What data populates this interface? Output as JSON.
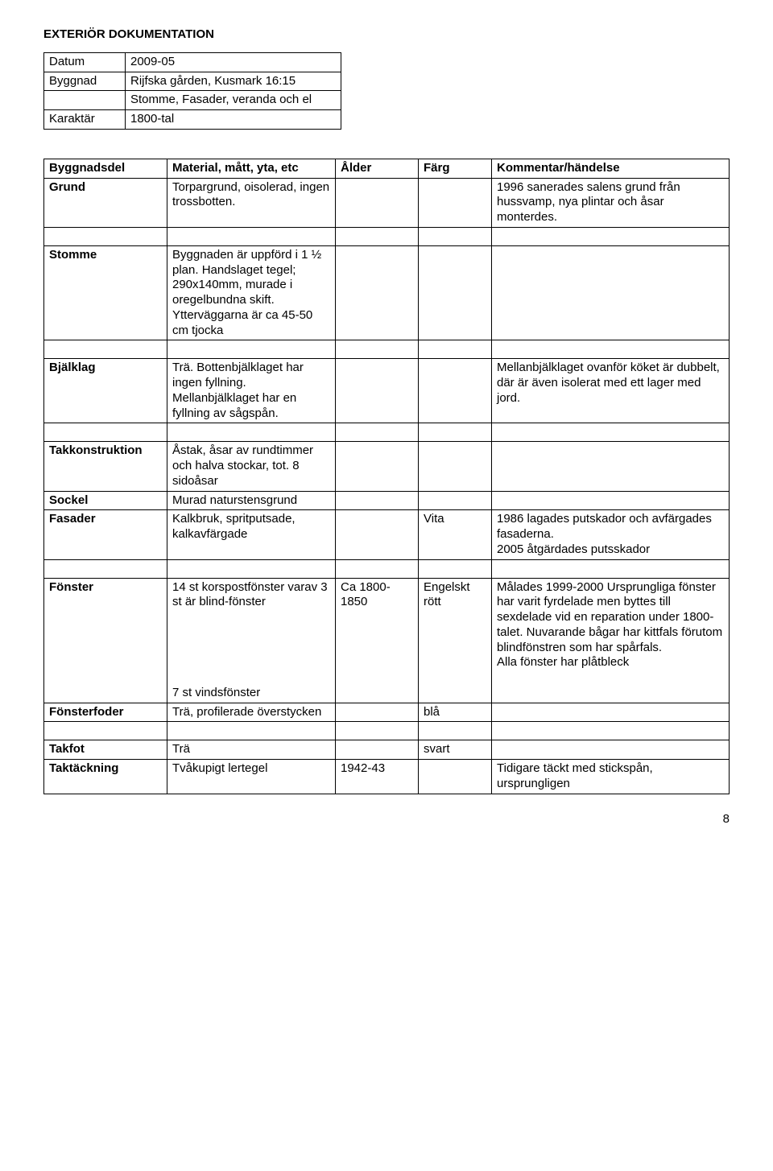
{
  "title": "EXTERIÖR DOKUMENTATION",
  "info": {
    "rows": [
      {
        "label": "Datum",
        "value": "2009-05"
      },
      {
        "label": "Byggnad",
        "value": "Rijfska gården, Kusmark 16:15"
      },
      {
        "label": "",
        "value": "Stomme, Fasader, veranda och el"
      },
      {
        "label": "Karaktär",
        "value": "1800-tal"
      }
    ]
  },
  "main": {
    "headers": {
      "part": "Byggnadsdel",
      "material": "Material, mått, yta, etc",
      "age": "Ålder",
      "color": "Färg",
      "comment": "Kommentar/händelse"
    },
    "rows": [
      {
        "part": "Grund",
        "material": "Torpargrund, oisolerad, ingen trossbotten.",
        "age": "",
        "color": "",
        "comment": "1996 sanerades salens grund från hussvamp, nya plintar och åsar monterdes."
      },
      {
        "part": "",
        "material": "",
        "age": "",
        "color": "",
        "comment": "",
        "spacer": true
      },
      {
        "part": "Stomme",
        "material": "Byggnaden är uppförd i 1 ½ plan. Handslaget tegel; 290x140mm, murade i oregelbundna skift. Ytterväggarna är ca 45-50 cm tjocka",
        "age": "",
        "color": "",
        "comment": ""
      },
      {
        "part": "",
        "material": "",
        "age": "",
        "color": "",
        "comment": "",
        "spacer": true
      },
      {
        "part": "Bjälklag",
        "material": "Trä. Bottenbjälklaget har ingen fyllning. Mellanbjälklaget har en fyllning av sågspån.",
        "age": "",
        "color": "",
        "comment": "Mellanbjälklaget ovanför köket är dubbelt, där är även isolerat med ett lager med jord."
      },
      {
        "part": "",
        "material": "",
        "age": "",
        "color": "",
        "comment": "",
        "spacer": true
      },
      {
        "part": "Takkonstruktion",
        "material": "Åstak, åsar av rundtimmer och halva stockar, tot. 8 sidoåsar",
        "age": "",
        "color": "",
        "comment": ""
      },
      {
        "part": "Sockel",
        "material": "Murad naturstensgrund",
        "age": "",
        "color": "",
        "comment": ""
      },
      {
        "part": "Fasader",
        "material": "Kalkbruk, spritputsade, kalkavfärgade",
        "age": "",
        "color": "Vita",
        "comment": "1986 lagades putskador och avfärgades fasaderna.\n2005 åtgärdades putsskador"
      },
      {
        "part": "",
        "material": "",
        "age": "",
        "color": "",
        "comment": "",
        "spacer": true
      },
      {
        "part": "Fönster",
        "material": "14 st korspostfönster varav 3 st är blind-fönster\n\n\n\n\n\n 7 st vindsfönster",
        "age": "Ca 1800-1850",
        "color": "Engelskt rött",
        "comment": "Målades 1999-2000 Ursprungliga fönster har varit fyrdelade men byttes till sexdelade vid en reparation under 1800-talet. Nuvarande bågar har kittfals förutom blindfönstren som har spårfals.\nAlla fönster har plåtbleck"
      },
      {
        "part": "Fönsterfoder",
        "material": "Trä, profilerade överstycken",
        "age": "",
        "color": "blå",
        "comment": ""
      },
      {
        "part": "",
        "material": "",
        "age": "",
        "color": "",
        "comment": "",
        "spacer": true
      },
      {
        "part": "Takfot",
        "material": "Trä",
        "age": "",
        "color": "svart",
        "comment": ""
      },
      {
        "part": "Taktäckning",
        "material": "Tvåkupigt lertegel",
        "age": "1942-43",
        "color": "",
        "comment": "Tidigare täckt med stickspån, ursprungligen"
      }
    ]
  },
  "pageNumber": "8"
}
